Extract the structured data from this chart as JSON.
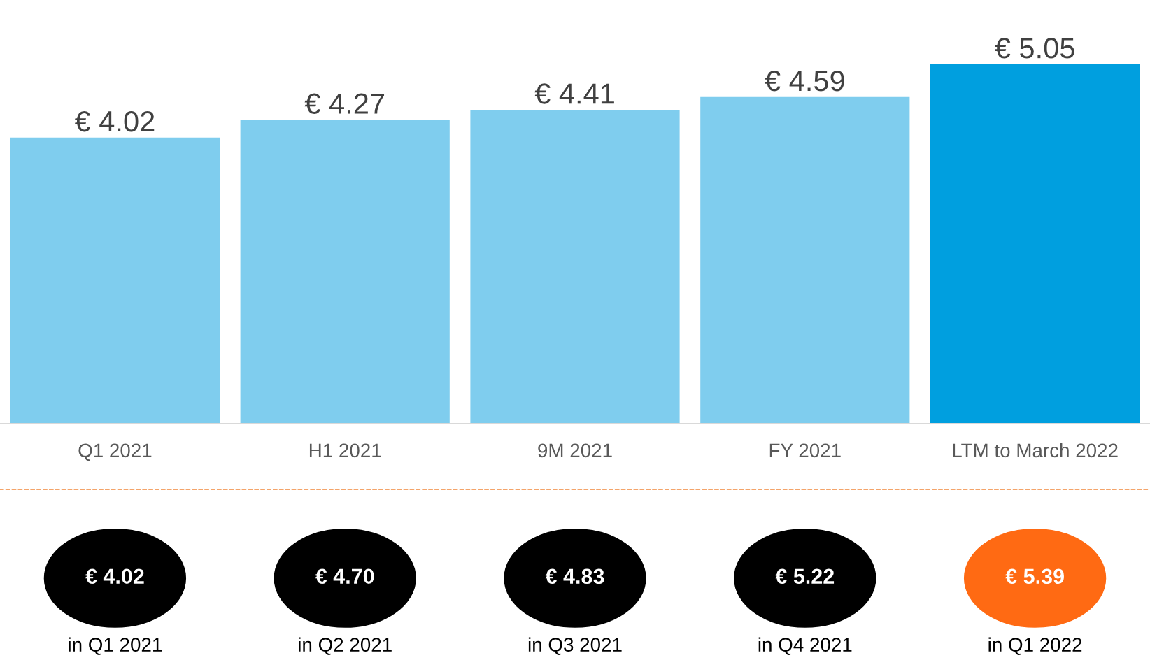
{
  "chart_data": [
    {
      "type": "bar",
      "categories": [
        "Q1 2021",
        "H1 2021",
        "9M 2021",
        "FY 2021",
        "LTM to March 2022"
      ],
      "values": [
        4.02,
        4.27,
        4.41,
        4.59,
        5.05
      ],
      "colors": [
        "#7fcdee",
        "#7fcdee",
        "#7fcdee",
        "#7fcdee",
        "#009fdf"
      ],
      "value_labels": [
        "€ 4.02",
        "€ 4.27",
        "€ 4.41",
        "€ 4.59",
        "€ 5.05"
      ],
      "tick_labels": "x",
      "grid": false,
      "legend": false
    },
    {
      "type": "other",
      "categories": [
        "in Q1 2021",
        "in Q2 2021",
        "in Q3 2021",
        "in Q4 2021",
        "in Q1 2022"
      ],
      "values": [
        4.02,
        4.7,
        4.83,
        5.22,
        5.39
      ],
      "colors": [
        "#000000",
        "#000000",
        "#000000",
        "#000000",
        "#ff6a13"
      ],
      "value_labels": [
        "€ 4.02",
        "€ 4.70",
        "€ 4.83",
        "€ 5.22",
        "€ 5.39"
      ]
    }
  ]
}
